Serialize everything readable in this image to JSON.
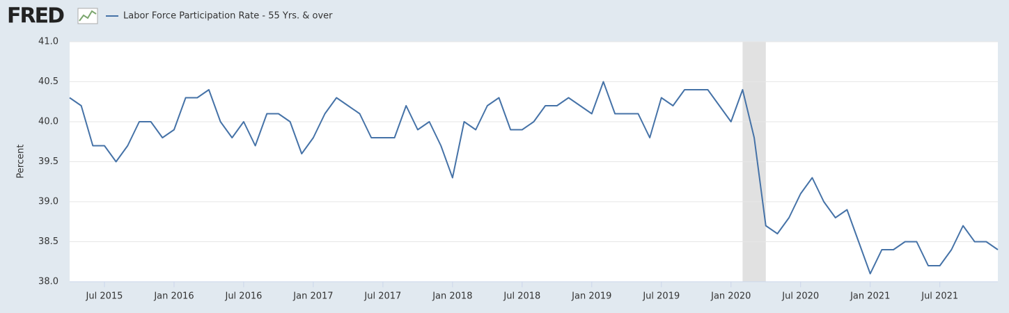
{
  "logo": "FRED",
  "chart_data": {
    "type": "line",
    "series": [
      {
        "name": "Labor Force Participation Rate - 55 Yrs. & over",
        "color": "#4572a7",
        "values": [
          40.3,
          40.2,
          39.7,
          39.7,
          39.5,
          39.7,
          40.0,
          40.0,
          39.8,
          39.9,
          40.3,
          40.3,
          40.4,
          40.0,
          39.8,
          40.0,
          39.7,
          40.1,
          40.1,
          40.0,
          39.6,
          39.8,
          40.1,
          40.3,
          40.2,
          40.1,
          39.8,
          39.8,
          39.8,
          40.2,
          39.9,
          40.0,
          39.7,
          39.3,
          40.0,
          39.9,
          40.2,
          40.3,
          39.9,
          39.9,
          40.0,
          40.2,
          40.2,
          40.3,
          40.2,
          40.1,
          40.5,
          40.1,
          40.1,
          40.1,
          39.8,
          40.3,
          40.2,
          40.4,
          40.4,
          40.4,
          40.2,
          40.0,
          40.4,
          39.8,
          38.7,
          38.6,
          38.8,
          39.1,
          39.3,
          39.0,
          38.8,
          38.9,
          38.5,
          38.1,
          38.4,
          38.4,
          38.5,
          38.5,
          38.2,
          38.2,
          38.4,
          38.7,
          38.5,
          38.5,
          38.4
        ]
      }
    ],
    "x": [
      "2015-04",
      "2015-05",
      "2015-06",
      "2015-07",
      "2015-08",
      "2015-09",
      "2015-10",
      "2015-11",
      "2015-12",
      "2016-01",
      "2016-02",
      "2016-03",
      "2016-04",
      "2016-05",
      "2016-06",
      "2016-07",
      "2016-08",
      "2016-09",
      "2016-10",
      "2016-11",
      "2016-12",
      "2017-01",
      "2017-02",
      "2017-03",
      "2017-04",
      "2017-05",
      "2017-06",
      "2017-07",
      "2017-08",
      "2017-09",
      "2017-10",
      "2017-11",
      "2017-12",
      "2018-01",
      "2018-02",
      "2018-03",
      "2018-04",
      "2018-05",
      "2018-06",
      "2018-07",
      "2018-08",
      "2018-09",
      "2018-10",
      "2018-11",
      "2018-12",
      "2019-01",
      "2019-02",
      "2019-03",
      "2019-04",
      "2019-05",
      "2019-06",
      "2019-07",
      "2019-08",
      "2019-09",
      "2019-10",
      "2019-11",
      "2019-12",
      "2020-01",
      "2020-02",
      "2020-03",
      "2020-04",
      "2020-05",
      "2020-06",
      "2020-07",
      "2020-08",
      "2020-09",
      "2020-10",
      "2020-11",
      "2020-12",
      "2021-01",
      "2021-02",
      "2021-03",
      "2021-04",
      "2021-05",
      "2021-06",
      "2021-07",
      "2021-08",
      "2021-09",
      "2021-10",
      "2021-11",
      "2021-12"
    ],
    "xticks": [
      {
        "value": "2015-07",
        "label": "Jul 2015"
      },
      {
        "value": "2016-01",
        "label": "Jan 2016"
      },
      {
        "value": "2016-07",
        "label": "Jul 2016"
      },
      {
        "value": "2017-01",
        "label": "Jan 2017"
      },
      {
        "value": "2017-07",
        "label": "Jul 2017"
      },
      {
        "value": "2018-01",
        "label": "Jan 2018"
      },
      {
        "value": "2018-07",
        "label": "Jul 2018"
      },
      {
        "value": "2019-01",
        "label": "Jan 2019"
      },
      {
        "value": "2019-07",
        "label": "Jul 2019"
      },
      {
        "value": "2020-01",
        "label": "Jan 2020"
      },
      {
        "value": "2020-07",
        "label": "Jul 2020"
      },
      {
        "value": "2021-01",
        "label": "Jan 2021"
      },
      {
        "value": "2021-07",
        "label": "Jul 2021"
      }
    ],
    "recession": [
      "2020-02",
      "2020-04"
    ],
    "ylabel": "Percent",
    "ylim": [
      38,
      41
    ],
    "yticks": [
      {
        "value": 38,
        "label": "38.0"
      },
      {
        "value": 38.5,
        "label": "38.5"
      },
      {
        "value": 39,
        "label": "39.0"
      },
      {
        "value": 39.5,
        "label": "39.5"
      },
      {
        "value": 40,
        "label": "40.0"
      },
      {
        "value": 40.5,
        "label": "40.5"
      },
      {
        "value": 41,
        "label": "41.0"
      }
    ],
    "grid": true
  }
}
